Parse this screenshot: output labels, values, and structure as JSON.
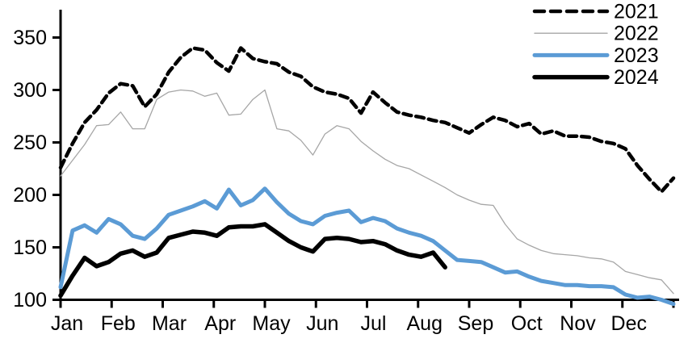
{
  "chart_data": {
    "type": "line",
    "title": "",
    "xlabel": "",
    "ylabel": "",
    "x_unit": "weeks (52 per year)",
    "x_tick_labels": [
      "Jan",
      "Feb",
      "Mar",
      "Apr",
      "May",
      "Jun",
      "Jul",
      "Aug",
      "Sep",
      "Oct",
      "Nov",
      "Dec"
    ],
    "y_ticks": [
      100,
      150,
      200,
      250,
      300,
      350
    ],
    "ylim": [
      100,
      375
    ],
    "grid": false,
    "legend_position": "top-right",
    "series": [
      {
        "name": "2021",
        "style": "dashed",
        "color": "#000000",
        "width": 4.5,
        "values": [
          226,
          249,
          269,
          281,
          297,
          306,
          304,
          284,
          296,
          317,
          331,
          340,
          338,
          326,
          318,
          340,
          330,
          327,
          325,
          317,
          313,
          303,
          298,
          296,
          292,
          278,
          298,
          288,
          279,
          276,
          274,
          271,
          269,
          264,
          259,
          267,
          274,
          271,
          265,
          268,
          258,
          261,
          256,
          256,
          255,
          251,
          249,
          244,
          228,
          215,
          203,
          216
        ]
      },
      {
        "name": "2022",
        "style": "solid",
        "color": "#a6a6a6",
        "width": 1.3,
        "values": [
          218,
          233,
          248,
          266,
          267,
          279,
          263,
          263,
          291,
          298,
          300,
          299,
          294,
          297,
          276,
          277,
          291,
          300,
          263,
          261,
          252,
          238,
          258,
          266,
          263,
          251,
          242,
          234,
          228,
          225,
          219,
          213,
          207,
          200,
          195,
          191,
          190,
          172,
          158,
          152,
          147,
          144,
          143,
          142,
          140,
          139,
          136,
          127,
          124,
          121,
          119,
          106
        ]
      },
      {
        "name": "2023",
        "style": "solid",
        "color": "#5b9bd5",
        "width": 5,
        "values": [
          112,
          166,
          171,
          164,
          177,
          172,
          161,
          158,
          168,
          181,
          185,
          189,
          194,
          187,
          205,
          190,
          195,
          206,
          193,
          182,
          175,
          172,
          180,
          183,
          185,
          174,
          178,
          175,
          168,
          164,
          161,
          156,
          147,
          138,
          137,
          136,
          131,
          126,
          127,
          122,
          118,
          116,
          114,
          114,
          113,
          113,
          112,
          105,
          102,
          103,
          100,
          96
        ]
      },
      {
        "name": "2024",
        "style": "solid",
        "color": "#000000",
        "width": 5.5,
        "values": [
          104,
          123,
          140,
          132,
          136,
          144,
          147,
          141,
          145,
          159,
          162,
          165,
          164,
          161,
          169,
          170,
          170,
          172,
          164,
          156,
          150,
          146,
          158,
          159,
          158,
          155,
          156,
          153,
          147,
          143,
          141,
          145,
          131
        ]
      }
    ],
    "legend": {
      "entries": [
        "2021",
        "2022",
        "2023",
        "2024"
      ]
    }
  }
}
